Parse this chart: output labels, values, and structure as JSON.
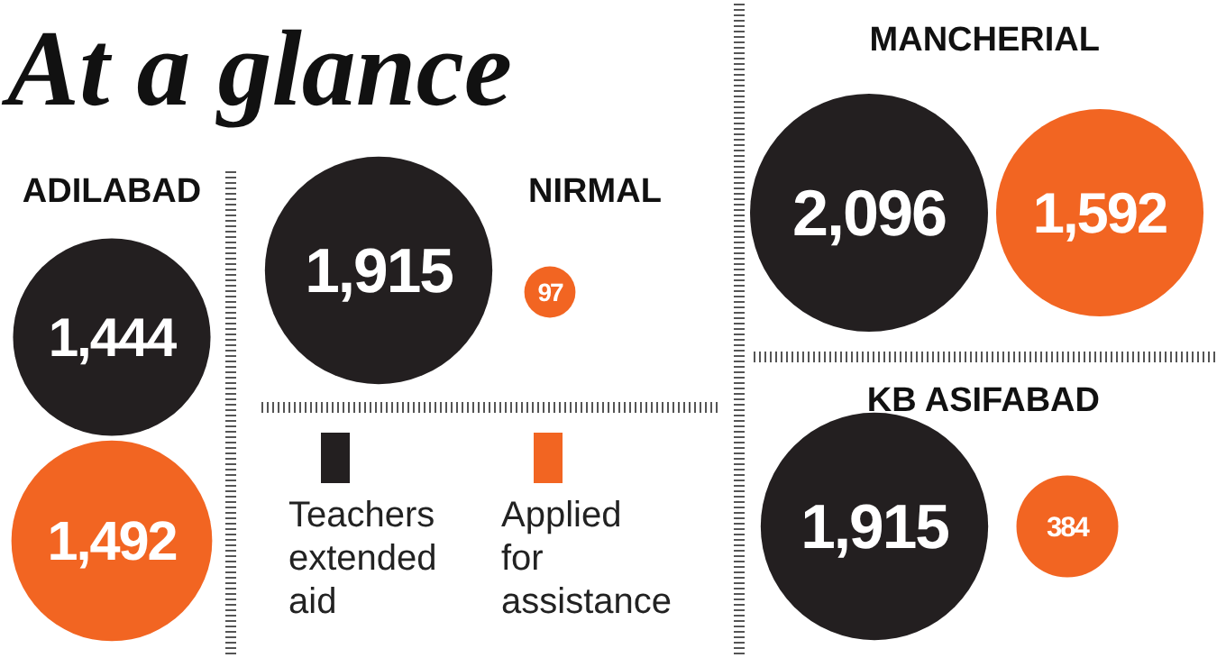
{
  "chart_data": {
    "type": "other",
    "title": "At a glance",
    "categories": [
      "ADILABAD",
      "NIRMAL",
      "MANCHERIAL",
      "KB ASIFABAD"
    ],
    "series": [
      {
        "name": "Teachers extended aid",
        "color": "#231f20",
        "values": [
          1444,
          1915,
          2096,
          1915
        ],
        "value_labels": [
          "1,444",
          "1,915",
          "2,096",
          "1,915"
        ]
      },
      {
        "name": "Applied for assistance",
        "color": "#f26522",
        "values": [
          1492,
          97,
          1592,
          384
        ],
        "value_labels": [
          "1,492",
          "97",
          "1,592",
          "384"
        ]
      }
    ],
    "legend": "bottom"
  }
}
